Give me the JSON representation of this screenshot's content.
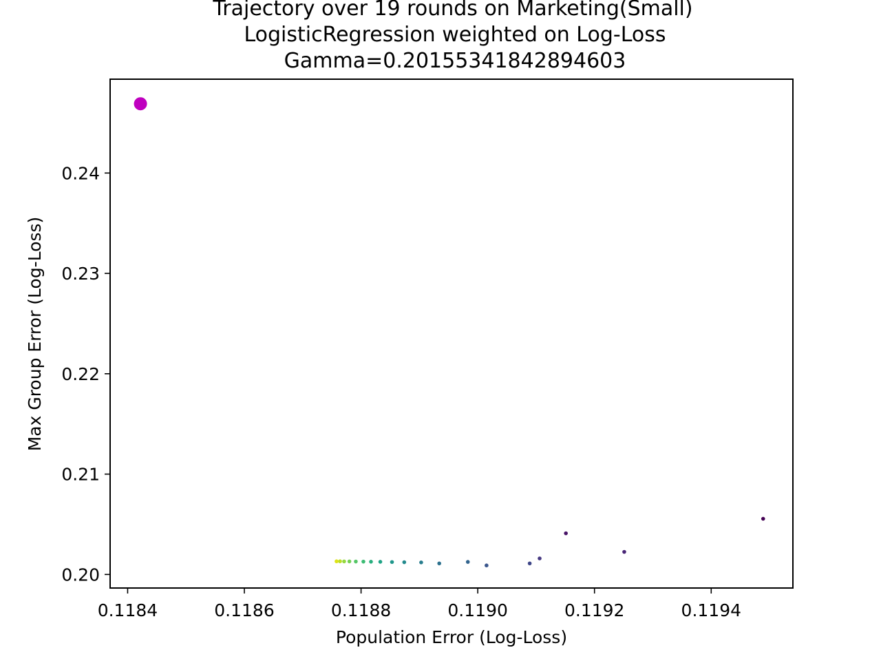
{
  "chart_data": {
    "type": "scatter",
    "title_lines": [
      "Trajectory over 19 rounds on Marketing(Small)",
      "LogisticRegression weighted on Log-Loss",
      "Gamma=0.20155341842894603"
    ],
    "xlabel": "Population Error (Log-Loss)",
    "ylabel": "Max Group Error (Log-Loss)",
    "xlim": [
      0.11837,
      0.11954
    ],
    "ylim": [
      0.19865,
      0.24935
    ],
    "xticks": [
      {
        "value": 0.1184,
        "label": "0.1184"
      },
      {
        "value": 0.1186,
        "label": "0.1186"
      },
      {
        "value": 0.1188,
        "label": "0.1188"
      },
      {
        "value": 0.119,
        "label": "0.1190"
      },
      {
        "value": 0.1192,
        "label": "0.1192"
      },
      {
        "value": 0.1194,
        "label": "0.1194"
      }
    ],
    "yticks": [
      {
        "value": 0.2,
        "label": "0.20"
      },
      {
        "value": 0.21,
        "label": "0.21"
      },
      {
        "value": 0.22,
        "label": "0.22"
      },
      {
        "value": 0.23,
        "label": "0.23"
      },
      {
        "value": 0.24,
        "label": "0.24"
      }
    ],
    "grid": false,
    "highlight_point": {
      "x": 0.118422,
      "y": 0.2469,
      "color": "#bf00bf"
    },
    "trajectory": [
      {
        "x": 0.119489,
        "y": 0.20555,
        "color": "#440154"
      },
      {
        "x": 0.119151,
        "y": 0.2041,
        "color": "#481467"
      },
      {
        "x": 0.119251,
        "y": 0.20225,
        "color": "#482576"
      },
      {
        "x": 0.119106,
        "y": 0.2016,
        "color": "#453781"
      },
      {
        "x": 0.119089,
        "y": 0.2011,
        "color": "#3f4788"
      },
      {
        "x": 0.119015,
        "y": 0.2009,
        "color": "#39558c"
      },
      {
        "x": 0.118983,
        "y": 0.20125,
        "color": "#32648e"
      },
      {
        "x": 0.118934,
        "y": 0.2011,
        "color": "#2d718e"
      },
      {
        "x": 0.118903,
        "y": 0.2012,
        "color": "#287d8e"
      },
      {
        "x": 0.118874,
        "y": 0.20122,
        "color": "#238a8d"
      },
      {
        "x": 0.118853,
        "y": 0.20124,
        "color": "#1f968b"
      },
      {
        "x": 0.118833,
        "y": 0.20126,
        "color": "#20a386"
      },
      {
        "x": 0.118817,
        "y": 0.20127,
        "color": "#29af7f"
      },
      {
        "x": 0.118804,
        "y": 0.20128,
        "color": "#3dbc74"
      },
      {
        "x": 0.118791,
        "y": 0.20129,
        "color": "#56c667"
      },
      {
        "x": 0.11878,
        "y": 0.2013,
        "color": "#75d054"
      },
      {
        "x": 0.118771,
        "y": 0.2013,
        "color": "#95d840"
      },
      {
        "x": 0.118764,
        "y": 0.20131,
        "color": "#bade28"
      },
      {
        "x": 0.118758,
        "y": 0.20131,
        "color": "#dde318"
      }
    ]
  }
}
